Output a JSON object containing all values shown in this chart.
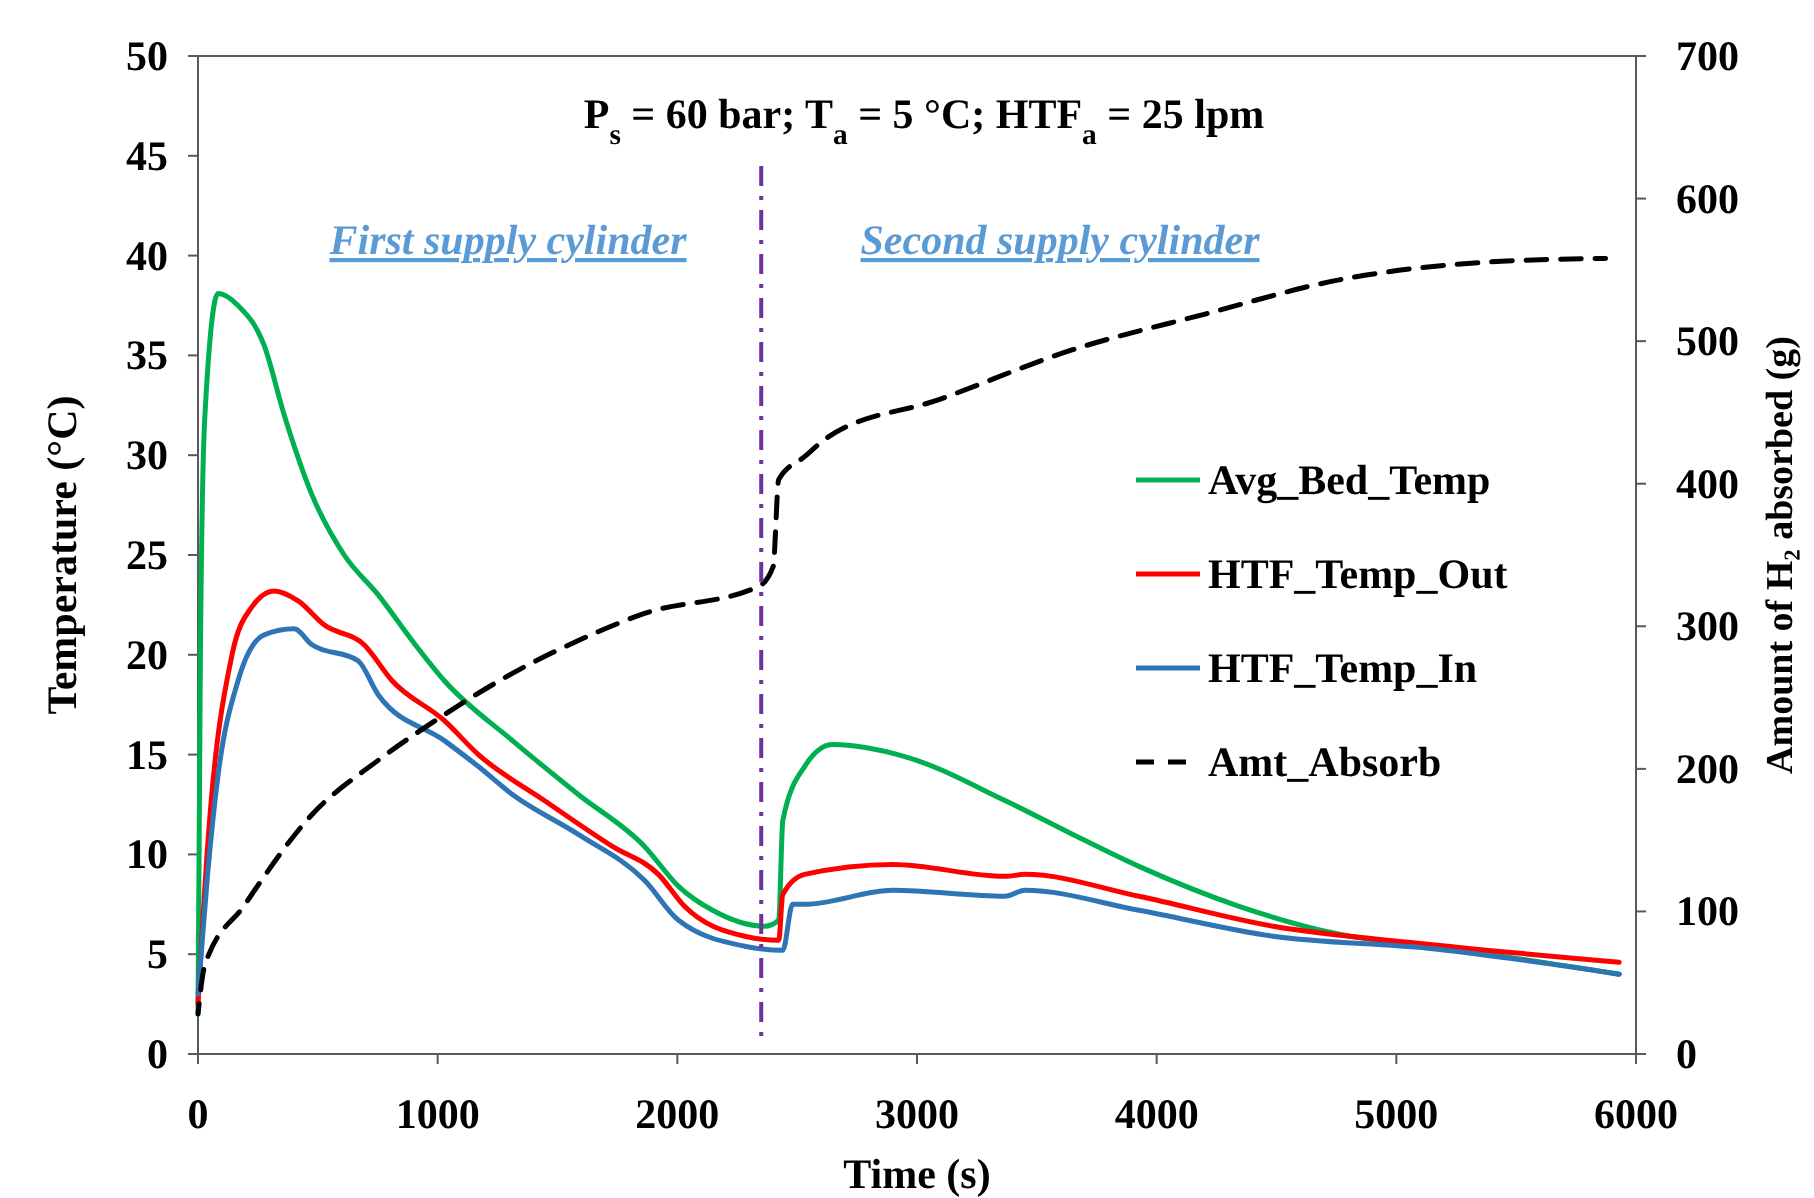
{
  "chart_data": {
    "type": "line",
    "title": "P$_{s}$ = 60 bar; T$_{a}$ = 5 °C; HTF$_{a}$ = 25 lpm",
    "xlabel": "Time (s)",
    "ylabel": "Temperature (°C)",
    "y2label": "Amount of H₂ absorbed (g)",
    "annotations": [
      "First supply cylinder",
      "Second supply cylinder"
    ],
    "xlim": [
      0,
      6000
    ],
    "xticks": [
      0,
      1000,
      2000,
      3000,
      4000,
      5000,
      6000
    ],
    "ylim": [
      0,
      50
    ],
    "yticks": [
      0,
      5,
      10,
      15,
      20,
      25,
      30,
      35,
      40,
      45,
      50
    ],
    "y2lim": [
      0,
      700
    ],
    "y2ticks": [
      0,
      100,
      200,
      300,
      400,
      500,
      600,
      700
    ],
    "grid": false,
    "legend": "right",
    "line_style": "solid",
    "ref_lines": [
      {
        "axis": "x",
        "value": 2350,
        "color": "#7030a0",
        "line_style": "dashdot"
      }
    ],
    "series": [
      {
        "name": "Avg_Bed_Temp",
        "color": "#00b050",
        "x": [
          0,
          10,
          28,
          84,
          167,
          276,
          360,
          476,
          610,
          752,
          894,
          1028,
          1312,
          1587,
          1863,
          2005,
          2147,
          2364,
          2423,
          2440,
          2531,
          2648,
          2949,
          3367,
          3650,
          3926,
          4344,
          4762,
          5130,
          5438,
          5930
        ],
        "values": [
          2,
          20,
          31.8,
          38.1,
          37.5,
          35.5,
          32,
          28,
          25,
          23,
          20.7,
          18.7,
          15.7,
          13,
          10.4,
          8.4,
          7.2,
          6.4,
          6.7,
          11.7,
          14.4,
          15.5,
          14.9,
          12.7,
          11,
          9.4,
          7.4,
          6,
          5.4,
          4.9,
          4
        ]
      },
      {
        "name": "HTF_Temp_Out",
        "color": "#ff0000",
        "x": [
          0,
          42,
          142,
          225,
          317,
          418,
          526,
          693,
          810,
          1028,
          1170,
          1445,
          1729,
          1921,
          2030,
          2281,
          2423,
          2440,
          2531,
          2899,
          3367,
          3450,
          3926,
          4486,
          5130,
          5930
        ],
        "values": [
          2.5,
          10.7,
          20,
          22.4,
          23.2,
          22.7,
          21.5,
          20.5,
          18.7,
          16.7,
          15,
          12.7,
          10.4,
          9,
          7.4,
          5.9,
          5.7,
          8,
          9,
          9.5,
          8.9,
          9,
          7.9,
          6.4,
          5.5,
          4.6
        ]
      },
      {
        "name": "HTF_Temp_In",
        "color": "#2e75b6",
        "x": [
          0,
          40,
          84,
          167,
          276,
          401,
          476,
          668,
          752,
          1028,
          1170,
          1312,
          1587,
          1863,
          2005,
          2281,
          2440,
          2481,
          2531,
          2899,
          3367,
          3450,
          3926,
          4486,
          5130,
          5930
        ],
        "values": [
          3,
          9,
          14,
          18.7,
          21,
          21.3,
          20.5,
          19.7,
          18,
          15.7,
          14.4,
          13,
          11,
          8.7,
          6.7,
          5.4,
          5.2,
          7.5,
          7.5,
          8.2,
          7.9,
          8.2,
          7.2,
          5.9,
          5.3,
          4
        ]
      },
      {
        "name": "Amt_Absorb",
        "color": "#000000",
        "axis": "y2",
        "line_style": "dashed",
        "x": [
          0,
          28,
          192,
          476,
          752,
          1028,
          1312,
          1587,
          1863,
          2339,
          2400,
          2423,
          2531,
          2623,
          3091,
          3650,
          4202,
          4762,
          5438,
          5873
        ],
        "values": [
          28,
          62,
          104,
          168,
          206,
          238,
          267,
          290,
          309,
          328,
          342,
          403,
          419,
          432,
          459,
          494,
          519,
          543,
          556,
          558
        ]
      }
    ]
  }
}
